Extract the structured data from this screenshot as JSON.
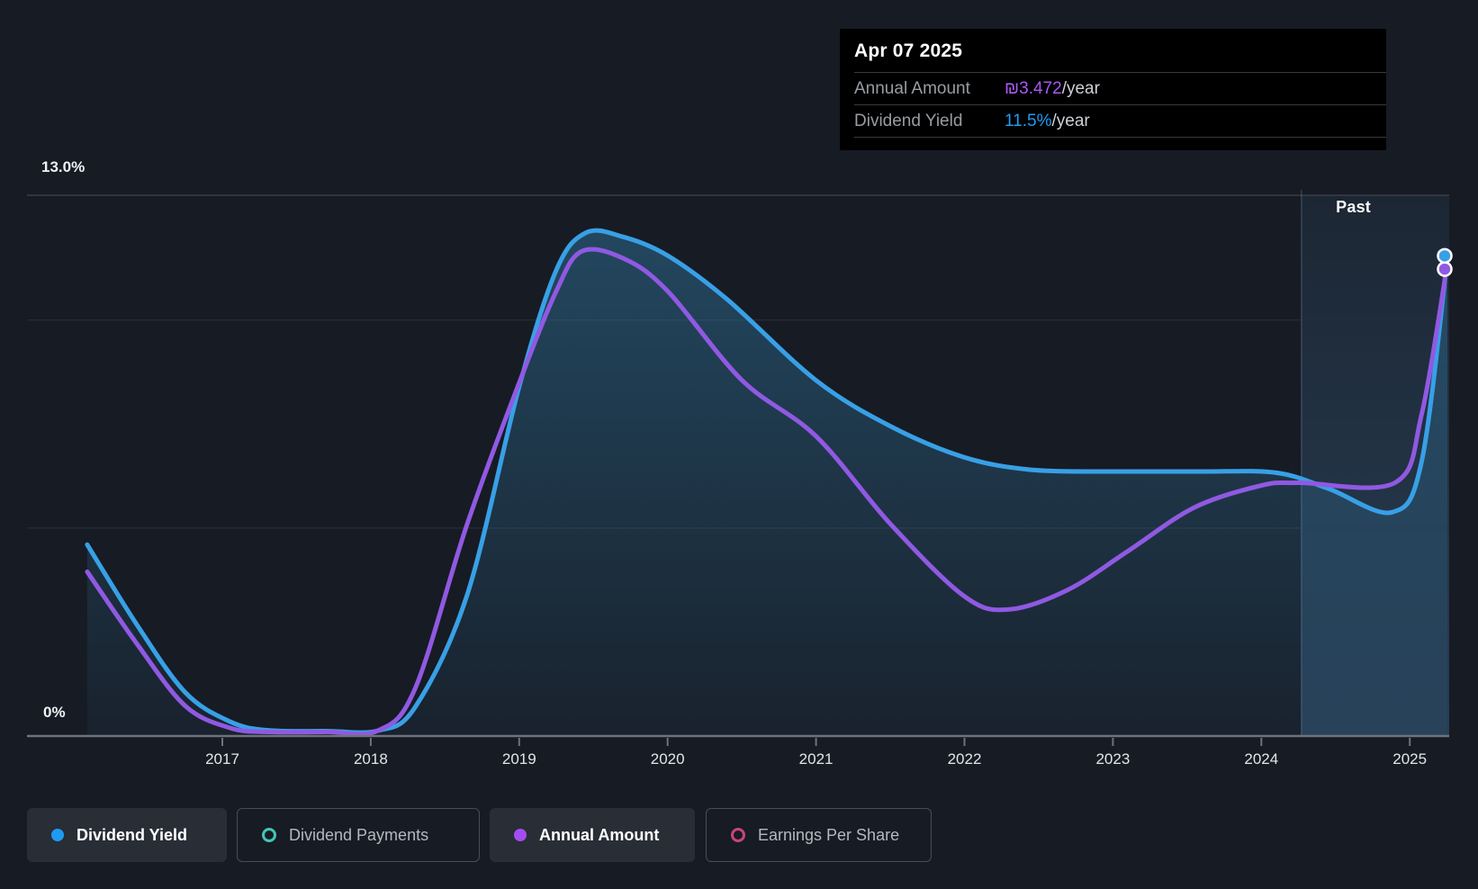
{
  "tooltip": {
    "date": "Apr 07 2025",
    "rows": [
      {
        "label": "Annual Amount",
        "value": "₪3.472",
        "suffix": "/year",
        "color": "#a958f5"
      },
      {
        "label": "Dividend Yield",
        "value": "11.5%",
        "suffix": "/year",
        "color": "#1f9cf4"
      }
    ]
  },
  "axis": {
    "y_top_label": "13.0%",
    "y_zero_label": "0%",
    "past_label": "Past",
    "years": [
      "2017",
      "2018",
      "2019",
      "2020",
      "2021",
      "2022",
      "2023",
      "2024",
      "2025"
    ]
  },
  "legend": [
    {
      "label": "Dividend Yield",
      "marker": "dot",
      "color": "#1e9bf0",
      "active": true
    },
    {
      "label": "Dividend Payments",
      "marker": "ring",
      "color": "#41c7b3",
      "active": false
    },
    {
      "label": "Annual Amount",
      "marker": "dot",
      "color": "#a34df0",
      "active": true
    },
    {
      "label": "Earnings Per Share",
      "marker": "ring",
      "color": "#c8447e",
      "active": false
    }
  ],
  "colors": {
    "background": "#171b24",
    "gridline": "#272e39",
    "gridline_top": "#3e4551",
    "axis_line": "#6c737c",
    "yield_line": "#38a0e6",
    "amount_line": "#9059e2",
    "fill_top": "#2d7096",
    "past_tint": "#4e8fc4",
    "divider": "#7fa8cc"
  },
  "chart_data": {
    "type": "line",
    "title": "Dividend history and forecast",
    "x_axis": {
      "ticks": [
        2017,
        2018,
        2019,
        2020,
        2021,
        2022,
        2023,
        2024,
        2025
      ],
      "range": [
        2016.09,
        2025.27
      ]
    },
    "y_axis_yield": {
      "unit": "%",
      "range": [
        0,
        13
      ],
      "gridlines": [
        13,
        10,
        5
      ],
      "top_label_value": 13.0
    },
    "y_axis_amount": {
      "unit": "₪",
      "range": [
        0,
        3.95
      ]
    },
    "past_region_start": 2024.27,
    "current": {
      "date": "Apr 07 2025",
      "annual_amount": 3.472,
      "dividend_yield_pct": 11.5
    },
    "series": [
      {
        "name": "Dividend Yield",
        "axis": "yield",
        "unit": "%",
        "fill": true,
        "color": "#38a0e6",
        "points": [
          [
            2016.09,
            4.6
          ],
          [
            2016.42,
            2.7
          ],
          [
            2016.75,
            1.05
          ],
          [
            2017.05,
            0.35
          ],
          [
            2017.3,
            0.14
          ],
          [
            2017.7,
            0.12
          ],
          [
            2018.05,
            0.13
          ],
          [
            2018.3,
            0.7
          ],
          [
            2018.65,
            3.4
          ],
          [
            2019.0,
            8.4
          ],
          [
            2019.25,
            11.2
          ],
          [
            2019.45,
            12.1
          ],
          [
            2019.7,
            12.0
          ],
          [
            2020.0,
            11.55
          ],
          [
            2020.4,
            10.5
          ],
          [
            2021.0,
            8.55
          ],
          [
            2021.5,
            7.45
          ],
          [
            2022.0,
            6.7
          ],
          [
            2022.45,
            6.4
          ],
          [
            2023.0,
            6.36
          ],
          [
            2023.6,
            6.36
          ],
          [
            2024.1,
            6.33
          ],
          [
            2024.45,
            5.95
          ],
          [
            2024.88,
            5.38
          ],
          [
            2025.08,
            6.6
          ],
          [
            2025.27,
            11.5
          ]
        ]
      },
      {
        "name": "Annual Amount",
        "axis": "amount",
        "unit": "₪",
        "fill": false,
        "color": "#9059e2",
        "points": [
          [
            2016.09,
            1.2
          ],
          [
            2016.42,
            0.68
          ],
          [
            2016.75,
            0.22
          ],
          [
            2017.05,
            0.06
          ],
          [
            2017.3,
            0.03
          ],
          [
            2017.7,
            0.03
          ],
          [
            2018.05,
            0.04
          ],
          [
            2018.3,
            0.35
          ],
          [
            2018.65,
            1.55
          ],
          [
            2019.0,
            2.58
          ],
          [
            2019.25,
            3.25
          ],
          [
            2019.42,
            3.54
          ],
          [
            2019.7,
            3.49
          ],
          [
            2020.0,
            3.25
          ],
          [
            2020.5,
            2.6
          ],
          [
            2021.0,
            2.19
          ],
          [
            2021.5,
            1.55
          ],
          [
            2022.0,
            1.02
          ],
          [
            2022.3,
            0.925
          ],
          [
            2022.7,
            1.07
          ],
          [
            2023.1,
            1.35
          ],
          [
            2023.55,
            1.67
          ],
          [
            2024.0,
            1.83
          ],
          [
            2024.25,
            1.85
          ],
          [
            2024.9,
            1.85
          ],
          [
            2025.08,
            2.35
          ],
          [
            2025.27,
            3.45
          ]
        ]
      }
    ]
  }
}
